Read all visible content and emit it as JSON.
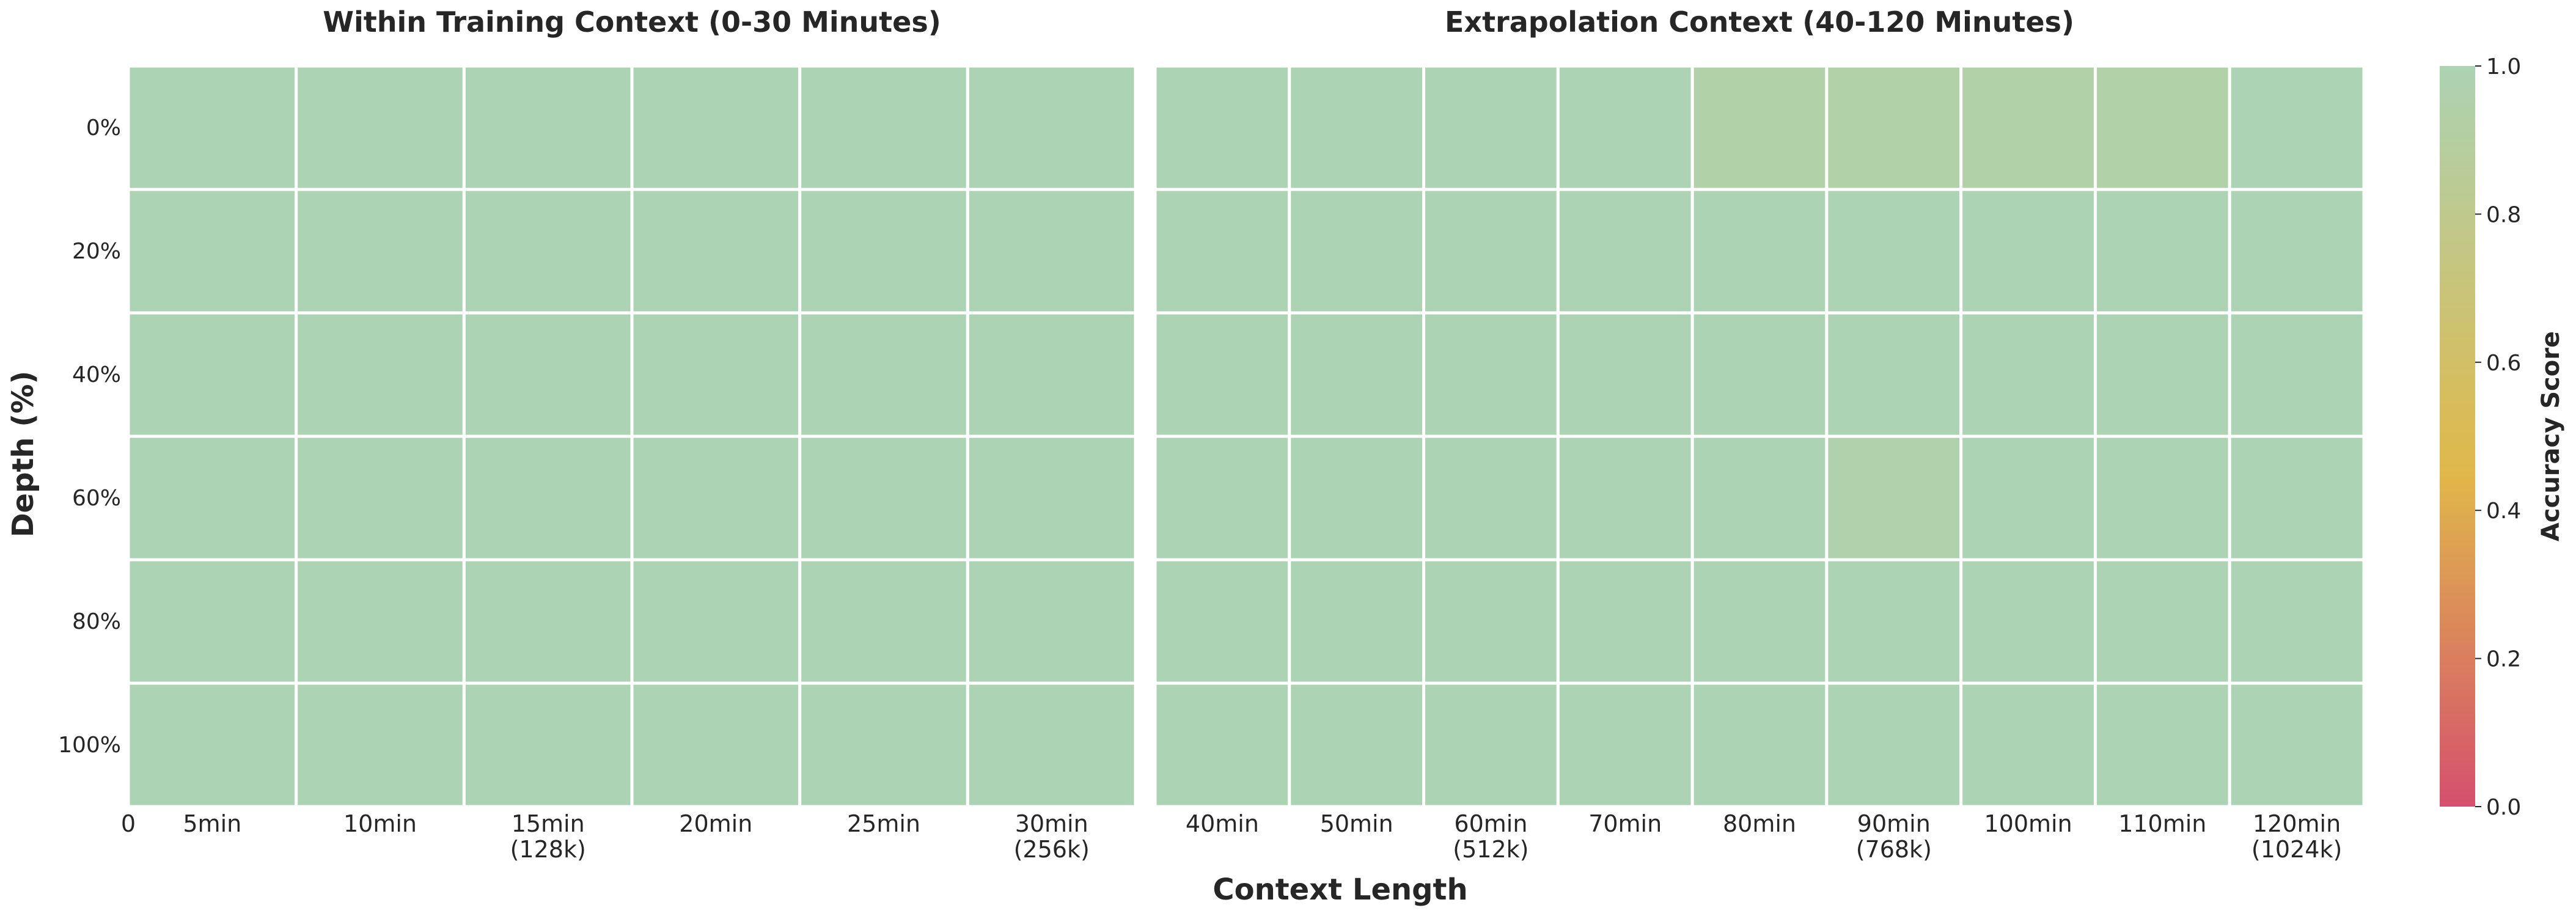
{
  "chart_data": {
    "type": "heatmap",
    "ylabel": "Depth (%)",
    "xlabel": "Context Length",
    "colorbar": {
      "label": "Accuracy Score",
      "range": [
        0,
        1
      ],
      "ticks": [
        "0.0",
        "0.2",
        "0.4",
        "0.6",
        "0.8",
        "1.0"
      ],
      "colors": {
        "low": "#d5506e",
        "mid": "#e0b84a",
        "high": "#acd3b3"
      }
    },
    "y_categories": [
      "0%",
      "20%",
      "40%",
      "60%",
      "80%",
      "100%"
    ],
    "x_origin_label": "0",
    "panels": [
      {
        "title": "Within Training Context (0-30 Minutes)",
        "x_categories": [
          [
            "5min"
          ],
          [
            "10min"
          ],
          [
            "15min",
            "(128k)"
          ],
          [
            "20min"
          ],
          [
            "25min"
          ],
          [
            "30min",
            "(256k)"
          ]
        ],
        "values": [
          [
            1,
            1,
            1,
            1,
            1,
            1
          ],
          [
            1,
            1,
            1,
            1,
            1,
            1
          ],
          [
            1,
            1,
            1,
            1,
            1,
            1
          ],
          [
            1,
            1,
            1,
            1,
            1,
            1
          ],
          [
            1,
            1,
            1,
            1,
            1,
            1
          ],
          [
            1,
            1,
            1,
            1,
            1,
            1
          ]
        ]
      },
      {
        "title": "Extrapolation Context (40-120 Minutes)",
        "x_categories": [
          [
            "40min"
          ],
          [
            "50min"
          ],
          [
            "60min",
            "(512k)"
          ],
          [
            "70min"
          ],
          [
            "80min"
          ],
          [
            "90min",
            "(768k)"
          ],
          [
            "100min"
          ],
          [
            "110min"
          ],
          [
            "120min",
            "(1024k)"
          ]
        ],
        "values": [
          [
            1,
            1,
            1,
            1,
            0.95,
            0.95,
            0.95,
            0.95,
            1
          ],
          [
            1,
            1,
            1,
            1,
            1,
            1,
            1,
            1,
            1
          ],
          [
            1,
            1,
            1,
            1,
            1,
            1,
            1,
            1,
            1
          ],
          [
            1,
            1,
            1,
            1,
            1,
            0.97,
            1,
            1,
            1
          ],
          [
            1,
            1,
            1,
            1,
            1,
            1,
            1,
            1,
            1
          ],
          [
            1,
            1,
            1,
            1,
            1,
            1,
            1,
            1,
            1
          ]
        ]
      }
    ]
  }
}
